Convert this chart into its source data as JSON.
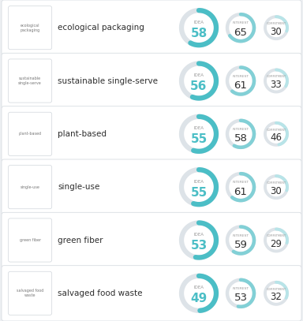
{
  "rows": [
    {
      "label": "ecological\npackaging",
      "name": "ecological packaging",
      "idea": 58,
      "interest": 65,
      "commitment": 30
    },
    {
      "label": "sustainable\nsingle-serve",
      "name": "sustainable single-serve",
      "idea": 56,
      "interest": 61,
      "commitment": 33
    },
    {
      "label": "plant-based",
      "name": "plant-based",
      "idea": 55,
      "interest": 58,
      "commitment": 46
    },
    {
      "label": "single-use",
      "name": "single-use",
      "idea": 55,
      "interest": 61,
      "commitment": 30
    },
    {
      "label": "green fiber",
      "name": "green fiber",
      "idea": 53,
      "interest": 59,
      "commitment": 29
    },
    {
      "label": "salvaged food\nwaste",
      "name": "salvaged food waste",
      "idea": 49,
      "interest": 53,
      "commitment": 32
    }
  ],
  "bg_color": "#eef0f3",
  "card_color": "#ffffff",
  "teal_dark": "#4bbec6",
  "teal_light": "#82d0d6",
  "teal_lightest": "#b8e4e8",
  "gray_ring": "#dde3e8",
  "text_dark": "#2d2d2d",
  "text_gray": "#999999",
  "thumb_bg": "#ffffff",
  "thumb_border": "#d0d6db",
  "card_border": "#d8dde2"
}
